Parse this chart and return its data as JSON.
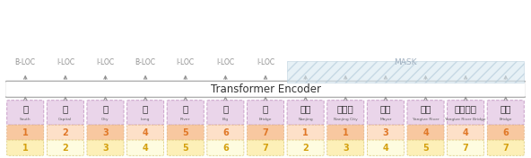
{
  "tokens_chinese": [
    "南",
    "京",
    "市",
    "长",
    "江",
    "大",
    "桥",
    "南京",
    "南京市",
    "市长",
    "长江",
    "长江大桥",
    "大桥"
  ],
  "tokens_english": [
    "South",
    "Capital",
    "City",
    "Long",
    "River",
    "Big",
    "Bridge",
    "Nanjing",
    "Nanjing City",
    "Mayor",
    "Yangtze River",
    "Yangtze River Bridge",
    "Bridge"
  ],
  "row1_vals": [
    "1",
    "2",
    "3",
    "4",
    "5",
    "6",
    "7",
    "1",
    "1",
    "3",
    "4",
    "4",
    "6"
  ],
  "row2_vals": [
    "1",
    "2",
    "3",
    "4",
    "5",
    "6",
    "7",
    "2",
    "3",
    "4",
    "5",
    "7",
    "7"
  ],
  "labels_top": [
    "B-LOC",
    "I-LOC",
    "I-LOC",
    "B-LOC",
    "I-LOC",
    "I-LOC",
    "I-LOC"
  ],
  "transformer_label": "Transformer Encoder",
  "mask_label": "MASK",
  "token_box_color": "#ead5ea",
  "token_box_border": "#c9a0c9",
  "row1_bg_odd": "#f8c8a0",
  "row1_bg_even": "#fde0c8",
  "row2_bg_odd": "#fdf0b8",
  "row2_bg_even": "#fefce0",
  "num_row1_color": "#e07828",
  "num_row2_color": "#d4a010",
  "bg_color": "#ffffff",
  "transformer_box_color": "#ffffff",
  "transformer_box_border": "#b0b0b0",
  "arrow_color": "#909090",
  "label_color": "#909090",
  "mask_fill": "#d8e8f0",
  "mask_edge": "#b0c8d8",
  "mask_text_color": "#a0b0c0"
}
